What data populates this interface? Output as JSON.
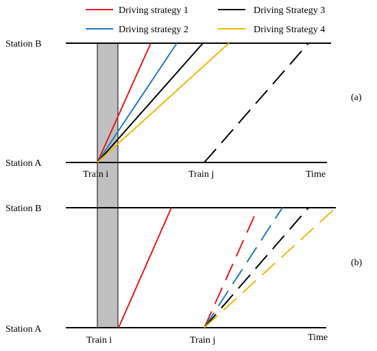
{
  "legend": {
    "items": [
      {
        "label": "Driving strategy 1",
        "color": "#e8161b",
        "style": "solid"
      },
      {
        "label": "Driving strategy 2",
        "color": "#1f77c0",
        "style": "solid"
      },
      {
        "label": "Driving Strategy 3",
        "color": "#000000",
        "style": "solid"
      },
      {
        "label": "Driving Strategy 4",
        "color": "#f2b705",
        "style": "solid"
      }
    ]
  },
  "colors": {
    "axis": "#000000",
    "headway_fill": "#c0c0c0",
    "headway_stroke": "#000000"
  },
  "panel_a": {
    "tag": "(a)",
    "station_top": "Station B",
    "station_bottom": "Station A",
    "train_first": "Train i",
    "train_second": "Train j",
    "time_label": "Time"
  },
  "panel_b": {
    "tag": "(b)",
    "station_top": "Station B",
    "station_bottom": "Station A",
    "train_first": "Train i",
    "train_second": "Train j",
    "time_label": "Time"
  }
}
